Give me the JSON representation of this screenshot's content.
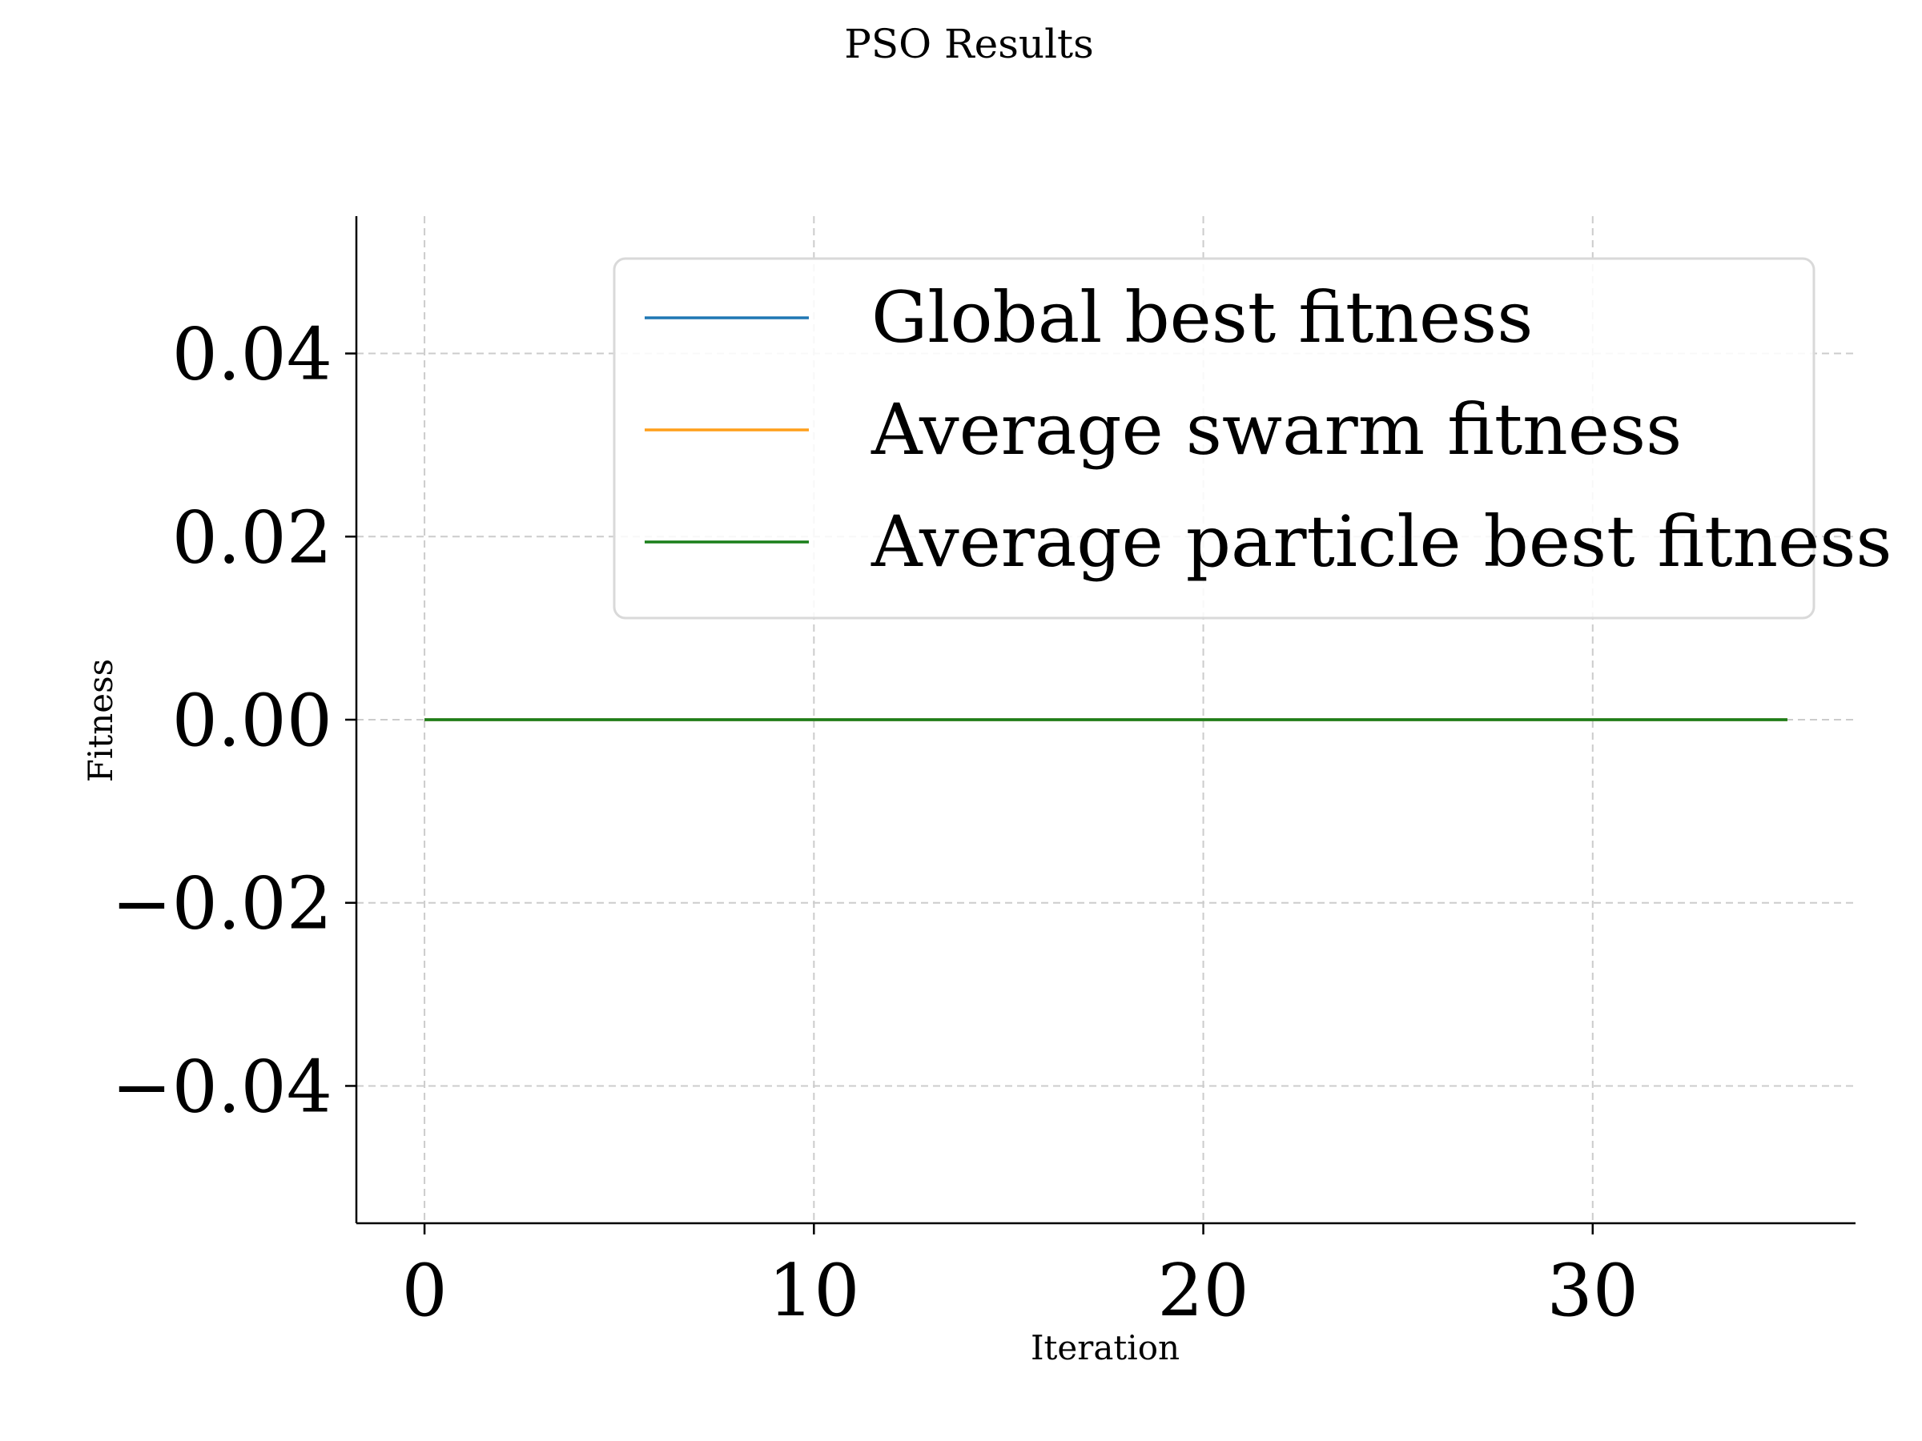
{
  "chart_data": {
    "type": "line",
    "title": "PSO Results",
    "xlabel": "Iteration",
    "ylabel": "Fitness",
    "xlim": [
      -1.75,
      36.75
    ],
    "ylim": [
      -0.055,
      0.055
    ],
    "xticks": [
      0,
      10,
      20,
      30
    ],
    "xtick_labels": [
      "0",
      "10",
      "20",
      "30"
    ],
    "yticks": [
      0.04,
      0.02,
      0.0,
      -0.02,
      -0.04
    ],
    "ytick_labels": [
      "0.04",
      "0.02",
      "0.00",
      "−0.02",
      "−0.04"
    ],
    "grid": true,
    "legend_position": "top-right",
    "x": [
      0,
      35
    ],
    "series": [
      {
        "name": "Global best fitness",
        "color": "#1f77b4",
        "values": [
          0,
          0
        ]
      },
      {
        "name": "Average swarm fitness",
        "color": "#ff9f1a",
        "values": [
          0,
          0
        ]
      },
      {
        "name": "Average particle best fitness",
        "color": "#1a7f1a",
        "values": [
          0,
          0
        ]
      }
    ]
  }
}
